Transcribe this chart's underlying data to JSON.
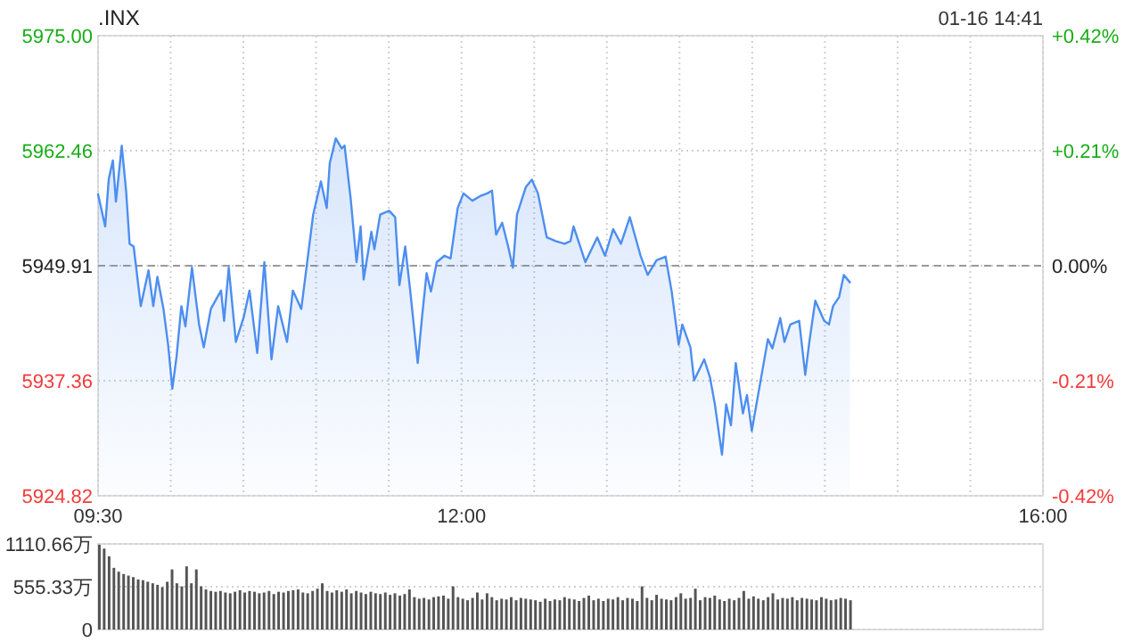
{
  "chart_data": [
    {
      "type": "area",
      "title": ".INX",
      "annotations": [
        "01-16 14:41"
      ],
      "xlim": [
        9.5,
        16
      ],
      "xticks": [
        {
          "value": 9.5,
          "label": "09:30"
        },
        {
          "value": 10,
          "label": null
        },
        {
          "value": 10.5,
          "label": null
        },
        {
          "value": 11,
          "label": null
        },
        {
          "value": 11.5,
          "label": null
        },
        {
          "value": 12,
          "label": "12:00"
        },
        {
          "value": 12.5,
          "label": null
        },
        {
          "value": 13,
          "label": null
        },
        {
          "value": 13.5,
          "label": null
        },
        {
          "value": 14,
          "label": null
        },
        {
          "value": 14.5,
          "label": null
        },
        {
          "value": 15,
          "label": null
        },
        {
          "value": 15.5,
          "label": null
        },
        {
          "value": 16,
          "label": "16:00"
        }
      ],
      "ylim": [
        5924.82,
        5975
      ],
      "yticks": [
        5924.82,
        5937.36,
        5949.91,
        5962.46,
        {
          "value": 5975,
          "label": "5975.00"
        }
      ],
      "y2lim": [
        -0.42,
        0.42
      ],
      "y2ticks": [
        {
          "value": -0.42,
          "label": "-0.42%"
        },
        {
          "value": -0.21,
          "label": "-0.21%"
        },
        {
          "value": 0,
          "label": "0.00%"
        },
        {
          "value": 0.21,
          "label": "+0.21%"
        },
        {
          "value": 0.42,
          "label": "+0.42%"
        }
      ],
      "grid": true,
      "ref_lines": [
        {
          "axis": "y",
          "value": 5949.91,
          "line_style": "dashed",
          "color": "#999999"
        }
      ],
      "series": [
        {
          "color": "#4d8ef0",
          "x": [
            9.5,
            9.521,
            9.549,
            9.574,
            9.602,
            9.623,
            9.663,
            9.693,
            9.717,
            9.745,
            9.794,
            9.847,
            9.88,
            9.908,
            9.95,
            9.982,
            10.011,
            10.04,
            10.073,
            10.101,
            10.146,
            10.195,
            10.227,
            10.276,
            10.346,
            10.367,
            10.399,
            10.448,
            10.502,
            10.542,
            10.595,
            10.644,
            10.693,
            10.739,
            10.8,
            10.84,
            10.898,
            10.98,
            11.033,
            11.073,
            11.094,
            11.135,
            11.176,
            11.196,
            11.238,
            11.278,
            11.306,
            11.327,
            11.38,
            11.401,
            11.441,
            11.503,
            11.544,
            11.573,
            11.613,
            11.646,
            11.699,
            11.728,
            11.76,
            11.79,
            11.83,
            11.883,
            11.925,
            11.974,
            12.014,
            12.075,
            12.128,
            12.177,
            12.21,
            12.238,
            12.28,
            12.321,
            12.354,
            12.382,
            12.443,
            12.484,
            12.526,
            12.587,
            12.648,
            12.709,
            12.75,
            12.771,
            12.852,
            12.934,
            12.987,
            13.044,
            13.097,
            13.158,
            13.232,
            13.281,
            13.342,
            13.404,
            13.446,
            13.494,
            13.519,
            13.575,
            13.6,
            13.67,
            13.71,
            13.743,
            13.792,
            13.821,
            13.854,
            13.887,
            13.936,
            13.964,
            13.997,
            14.058,
            14.108,
            14.139,
            14.193,
            14.222,
            14.262,
            14.323,
            14.365,
            14.393,
            14.434,
            14.495,
            14.528,
            14.556,
            14.598,
            14.63,
            14.672
          ],
          "values": [
            5957.7,
            5956.2,
            5954.2,
            5959.4,
            5961.4,
            5956.9,
            5963.0,
            5958.1,
            5952.3,
            5952.0,
            5945.5,
            5949.4,
            5945.5,
            5948.7,
            5945.2,
            5941.3,
            5936.5,
            5940.0,
            5945.5,
            5943.3,
            5949.7,
            5943.5,
            5941.0,
            5945.2,
            5947.2,
            5943.9,
            5949.7,
            5941.6,
            5944.3,
            5947.2,
            5940.4,
            5950.3,
            5939.7,
            5945.5,
            5941.6,
            5947.2,
            5945.2,
            5955.5,
            5959.1,
            5956.2,
            5961.1,
            5963.8,
            5962.7,
            5963.0,
            5957.2,
            5950.3,
            5954.2,
            5948.4,
            5953.6,
            5951.7,
            5955.5,
            5955.9,
            5955.2,
            5947.8,
            5952.0,
            5947.4,
            5939.3,
            5944.2,
            5949.1,
            5947.1,
            5950.3,
            5951.0,
            5950.7,
            5956.2,
            5957.8,
            5957.0,
            5957.5,
            5957.8,
            5958.1,
            5953.3,
            5954.6,
            5952.0,
            5949.7,
            5955.5,
            5958.5,
            5959.3,
            5957.8,
            5953.0,
            5952.6,
            5952.3,
            5952.6,
            5954.2,
            5950.3,
            5953.0,
            5951.0,
            5953.9,
            5952.3,
            5955.2,
            5951.0,
            5948.9,
            5950.5,
            5950.9,
            5947.1,
            5941.3,
            5943.5,
            5941.0,
            5937.4,
            5939.7,
            5937.7,
            5934.8,
            5929.3,
            5934.8,
            5932.5,
            5939.3,
            5933.8,
            5935.8,
            5931.9,
            5937.4,
            5941.9,
            5940.9,
            5944.2,
            5941.6,
            5943.5,
            5943.9,
            5938.0,
            5941.6,
            5946.1,
            5943.9,
            5943.5,
            5945.5,
            5946.5,
            5948.9,
            5948.1
          ]
        }
      ]
    },
    {
      "type": "bar",
      "tick_labels": "y",
      "xlim": [
        9.5,
        16
      ],
      "ylim": [
        0,
        1110.66
      ],
      "yticks": [
        0,
        {
          "value": 555.33,
          "label": "555.33万"
        },
        {
          "value": 1110.66,
          "label": "1110.66万"
        }
      ],
      "grid": "y",
      "series": [
        {
          "color": "#555555",
          "x": [
            9.5,
            9.533,
            9.567,
            9.6,
            9.633,
            9.667,
            9.7,
            9.733,
            9.767,
            9.8,
            9.833,
            9.867,
            9.9,
            9.933,
            9.967,
            10,
            10.033,
            10.067,
            10.1,
            10.133,
            10.167,
            10.2,
            10.233,
            10.267,
            10.3,
            10.333,
            10.367,
            10.4,
            10.433,
            10.467,
            10.5,
            10.533,
            10.567,
            10.6,
            10.633,
            10.667,
            10.7,
            10.733,
            10.767,
            10.8,
            10.833,
            10.867,
            10.9,
            10.933,
            10.967,
            11,
            11.033,
            11.067,
            11.1,
            11.133,
            11.167,
            11.2,
            11.233,
            11.267,
            11.3,
            11.333,
            11.367,
            11.4,
            11.433,
            11.467,
            11.5,
            11.533,
            11.567,
            11.6,
            11.633,
            11.667,
            11.7,
            11.733,
            11.767,
            11.8,
            11.833,
            11.867,
            11.9,
            11.933,
            11.967,
            12,
            12.033,
            12.067,
            12.1,
            12.133,
            12.167,
            12.2,
            12.233,
            12.267,
            12.3,
            12.333,
            12.367,
            12.4,
            12.433,
            12.467,
            12.5,
            12.533,
            12.567,
            12.6,
            12.633,
            12.667,
            12.7,
            12.733,
            12.767,
            12.8,
            12.833,
            12.867,
            12.9,
            12.933,
            12.967,
            13,
            13.033,
            13.067,
            13.1,
            13.133,
            13.167,
            13.2,
            13.233,
            13.267,
            13.3,
            13.333,
            13.367,
            13.4,
            13.433,
            13.467,
            13.5,
            13.533,
            13.567,
            13.6,
            13.633,
            13.667,
            13.7,
            13.733,
            13.767,
            13.8,
            13.833,
            13.867,
            13.9,
            13.933,
            13.967,
            14,
            14.033,
            14.067,
            14.1,
            14.133,
            14.167,
            14.2,
            14.233,
            14.267,
            14.3,
            14.333,
            14.367,
            14.4,
            14.433,
            14.467,
            14.5,
            14.533,
            14.567,
            14.6,
            14.633,
            14.667
          ],
          "values": [
            1100,
            1050,
            950,
            800,
            750,
            720,
            700,
            680,
            650,
            640,
            620,
            600,
            580,
            550,
            620,
            780,
            600,
            560,
            820,
            600,
            780,
            560,
            520,
            500,
            490,
            500,
            480,
            470,
            490,
            510,
            480,
            500,
            490,
            470,
            480,
            500,
            460,
            490,
            480,
            500,
            510,
            520,
            480,
            470,
            500,
            530,
            600,
            500,
            480,
            510,
            490,
            520,
            470,
            500,
            480,
            460,
            490,
            470,
            460,
            480,
            450,
            470,
            440,
            460,
            520,
            420,
            400,
            410,
            390,
            420,
            430,
            440,
            400,
            560,
            420,
            400,
            380,
            410,
            480,
            390,
            470,
            420,
            380,
            400,
            390,
            420,
            380,
            410,
            400,
            390,
            380,
            360,
            400,
            370,
            390,
            380,
            420,
            400,
            390,
            370,
            410,
            440,
            380,
            400,
            370,
            400,
            390,
            420,
            380,
            410,
            400,
            370,
            560,
            410,
            380,
            450,
            400,
            390,
            380,
            420,
            470,
            400,
            410,
            530,
            380,
            420,
            410,
            440,
            390,
            370,
            400,
            380,
            410,
            500,
            400,
            430,
            400,
            380,
            420,
            470,
            390,
            410,
            400,
            420,
            380,
            410,
            400,
            390,
            380,
            420,
            400,
            380,
            390,
            410,
            400,
            380
          ]
        }
      ]
    }
  ]
}
